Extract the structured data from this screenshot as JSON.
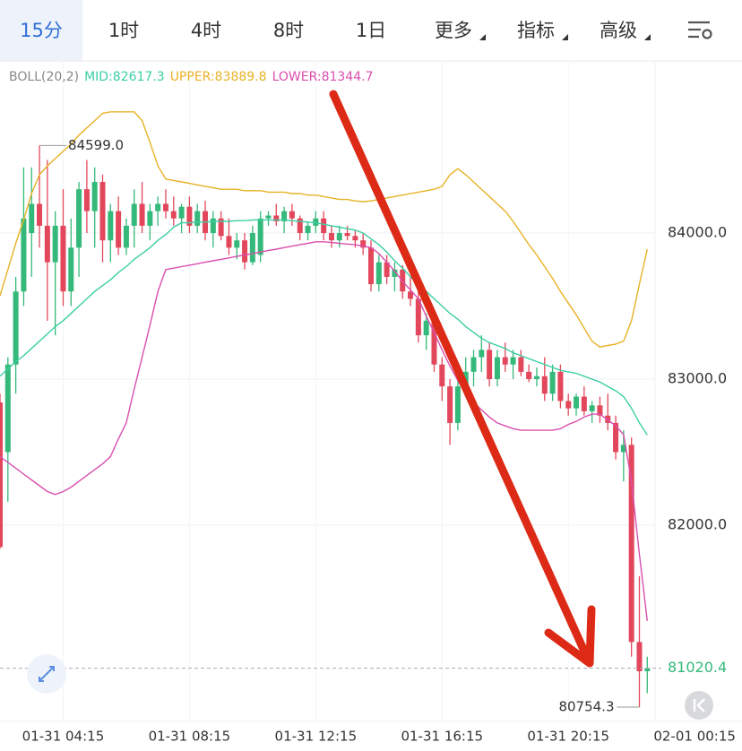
{
  "nav": {
    "tabs": [
      "15分",
      "1时",
      "4时",
      "8时",
      "1日",
      "更多",
      "指标",
      "高级"
    ]
  },
  "chart_data": {
    "type": "candlestick",
    "indicator": {
      "name": "BOLL(20,2)",
      "series": [
        {
          "name": "MID",
          "label": "MID:82617.3",
          "color": "#3ccfa4",
          "values": [
            83020,
            83070,
            83120,
            83160,
            83210,
            83260,
            83310,
            83360,
            83400,
            83450,
            83500,
            83550,
            83600,
            83640,
            83680,
            83730,
            83770,
            83820,
            83860,
            83900,
            83950,
            83990,
            84040,
            84070,
            84070,
            84075,
            84075,
            84080,
            84080,
            84080,
            84085,
            84085,
            84090,
            84090,
            84090,
            84090,
            84090,
            84085,
            84080,
            84075,
            84070,
            84060,
            84050,
            84040,
            84030,
            84020,
            84000,
            83960,
            83920,
            83870,
            83810,
            83760,
            83700,
            83650,
            83600,
            83550,
            83500,
            83450,
            83410,
            83360,
            83320,
            83280,
            83250,
            83230,
            83210,
            83180,
            83160,
            83140,
            83120,
            83100,
            83080,
            83060,
            83050,
            83040,
            83020,
            83000,
            82980,
            82950,
            82920,
            82880,
            82800,
            82700,
            82617.3
          ]
        },
        {
          "name": "UPPER",
          "label": "UPPER:83889.8",
          "color": "#e8b226",
          "values": [
            83570,
            83750,
            83930,
            84090,
            84270,
            84400,
            84460,
            84510,
            84560,
            84610,
            84670,
            84720,
            84770,
            84820,
            84830,
            84830,
            84830,
            84830,
            84770,
            84620,
            84460,
            84370,
            84360,
            84350,
            84340,
            84330,
            84320,
            84310,
            84300,
            84300,
            84300,
            84290,
            84290,
            84290,
            84280,
            84280,
            84280,
            84270,
            84270,
            84260,
            84260,
            84250,
            84240,
            84230,
            84230,
            84220,
            84215,
            84220,
            84230,
            84240,
            84250,
            84260,
            84270,
            84280,
            84290,
            84300,
            84320,
            84400,
            84440,
            84400,
            84350,
            84300,
            84250,
            84200,
            84150,
            84080,
            84000,
            83920,
            83850,
            83770,
            83690,
            83600,
            83520,
            83440,
            83350,
            83260,
            83220,
            83230,
            83240,
            83260,
            83400,
            83650,
            83889.8
          ]
        },
        {
          "name": "LOWER",
          "label": "LOWER:81344.7",
          "color": "#d94fae",
          "values": [
            82470,
            82430,
            82390,
            82350,
            82310,
            82270,
            82230,
            82210,
            82230,
            82260,
            82300,
            82340,
            82380,
            82420,
            82470,
            82590,
            82700,
            82930,
            83150,
            83370,
            83600,
            83750,
            83760,
            83770,
            83780,
            83790,
            83800,
            83810,
            83820,
            83830,
            83840,
            83850,
            83860,
            83870,
            83880,
            83890,
            83900,
            83910,
            83920,
            83930,
            83940,
            83940,
            83935,
            83930,
            83925,
            83920,
            83910,
            83900,
            83860,
            83800,
            83740,
            83670,
            83610,
            83550,
            83430,
            83320,
            83200,
            83090,
            82990,
            82900,
            82840,
            82790,
            82740,
            82700,
            82680,
            82660,
            82650,
            82650,
            82650,
            82650,
            82650,
            82660,
            82690,
            82710,
            82740,
            82760,
            82760,
            82720,
            82680,
            82620,
            82300,
            81800,
            81344.7
          ]
        }
      ]
    },
    "x": [
      0,
      1,
      2,
      3,
      4,
      5,
      6,
      7,
      8,
      9,
      10,
      11,
      12,
      13,
      14,
      15,
      16,
      17,
      18,
      19,
      20,
      21,
      22,
      23,
      24,
      25,
      26,
      27,
      28,
      29,
      30,
      31,
      32,
      33,
      34,
      35,
      36,
      37,
      38,
      39,
      40,
      41,
      42,
      43,
      44,
      45,
      46,
      47,
      48,
      49,
      50,
      51,
      52,
      53,
      54,
      55,
      56,
      57,
      58,
      59,
      60,
      61,
      62,
      63,
      64,
      65,
      66,
      67,
      68,
      69,
      70,
      71,
      72,
      73,
      74,
      75,
      76,
      77,
      78,
      79,
      80,
      81,
      82
    ],
    "open": [
      82840,
      82500,
      83100,
      83600,
      84000,
      84200,
      84050,
      83800,
      84050,
      83600,
      83900,
      84300,
      84150,
      84350,
      83950,
      84150,
      83900,
      84050,
      84200,
      84050,
      84150,
      84200,
      84150,
      84100,
      84180,
      84050,
      84150,
      84000,
      84100,
      83980,
      83900,
      83950,
      83800,
      83850,
      84100,
      84120,
      84080,
      84150,
      84100,
      84000,
      84050,
      84100,
      84000,
      83950,
      84000,
      83980,
      83950,
      83900,
      83650,
      83800,
      83700,
      83750,
      83600,
      83550,
      83300,
      83400,
      83100,
      82950,
      82700,
      82950,
      83050,
      83150,
      83200,
      83000,
      83150,
      83100,
      83150,
      83050,
      83000,
      83020,
      82900,
      83050,
      82850,
      82800,
      82880,
      82780,
      82820,
      82750,
      82700,
      82500,
      82550,
      81200,
      81000
    ],
    "high": [
      82900,
      83150,
      83700,
      84450,
      84450,
      84599,
      84500,
      84150,
      84300,
      84100,
      84350,
      84500,
      84450,
      84400,
      84200,
      84250,
      84100,
      84300,
      84350,
      84200,
      84250,
      84300,
      84250,
      84200,
      84250,
      84200,
      84220,
      84150,
      84150,
      84100,
      84000,
      84000,
      84050,
      84150,
      84150,
      84200,
      84180,
      84200,
      84120,
      84080,
      84150,
      84150,
      84050,
      84050,
      84050,
      84020,
      84000,
      83950,
      83850,
      83850,
      83800,
      83780,
      83700,
      83600,
      83450,
      83420,
      83150,
      83000,
      83000,
      83150,
      83200,
      83300,
      83250,
      83200,
      83250,
      83200,
      83200,
      83100,
      83080,
      83150,
      83100,
      83100,
      82900,
      82900,
      82950,
      82850,
      82880,
      82900,
      82750,
      82650,
      82600,
      81650,
      81100
    ],
    "low": [
      81840,
      82160,
      82900,
      83500,
      83700,
      83900,
      83400,
      83300,
      83500,
      83500,
      83700,
      84000,
      83900,
      83800,
      83800,
      83850,
      83850,
      83900,
      84000,
      83950,
      84050,
      84100,
      84050,
      84000,
      84000,
      84000,
      83950,
      83900,
      83950,
      83850,
      83820,
      83750,
      83780,
      83800,
      84050,
      84050,
      84000,
      84050,
      83950,
      83950,
      84000,
      83950,
      83900,
      83900,
      83950,
      83900,
      83850,
      83600,
      83600,
      83650,
      83600,
      83550,
      83500,
      83250,
      83200,
      83050,
      82850,
      82550,
      82650,
      82900,
      82950,
      83050,
      82950,
      82950,
      83050,
      83000,
      83020,
      82980,
      82950,
      82850,
      82850,
      82800,
      82750,
      82750,
      82750,
      82700,
      82700,
      82650,
      82450,
      82300,
      81100,
      80754.3,
      80850
    ],
    "close": [
      81850,
      83100,
      83600,
      84100,
      84200,
      84050,
      83800,
      84050,
      83600,
      83900,
      84300,
      84150,
      84350,
      83950,
      84150,
      83900,
      84050,
      84200,
      84050,
      84150,
      84200,
      84150,
      84100,
      84180,
      84050,
      84150,
      84000,
      84100,
      83980,
      83900,
      83950,
      83800,
      84000,
      84100,
      84120,
      84080,
      84150,
      84100,
      84000,
      84050,
      84100,
      84000,
      83950,
      84000,
      83980,
      83950,
      83900,
      83650,
      83800,
      83700,
      83750,
      83600,
      83550,
      83300,
      83400,
      83100,
      82950,
      82700,
      82950,
      83050,
      83150,
      83200,
      83000,
      83150,
      83100,
      83150,
      83050,
      83000,
      83020,
      82900,
      83050,
      82850,
      82800,
      82880,
      82780,
      82820,
      82750,
      82700,
      82500,
      82550,
      81200,
      81000,
      81020.4
    ],
    "up_color": "#35b97a",
    "down_color": "#e2475b",
    "xlim": [
      0,
      94
    ],
    "xticks": [
      {
        "value": 8,
        "label": "01-31 04:15"
      },
      {
        "value": 24,
        "label": "01-31 08:15"
      },
      {
        "value": 40,
        "label": "01-31 12:15"
      },
      {
        "value": 56,
        "label": "01-31 16:15"
      },
      {
        "value": 72,
        "label": "01-31 20:15"
      },
      {
        "value": 88,
        "label": "02-01 00:15"
      }
    ],
    "ylim": [
      80687,
      84982
    ],
    "yticks": [
      {
        "value": 84000,
        "label": "84000.0"
      },
      {
        "value": 83000,
        "label": "83000.0"
      },
      {
        "value": 82000,
        "label": "82000.0"
      }
    ],
    "grid": true,
    "high_label": "84599.0",
    "low_label": "80754.3",
    "last_price_label": "81020.4"
  }
}
